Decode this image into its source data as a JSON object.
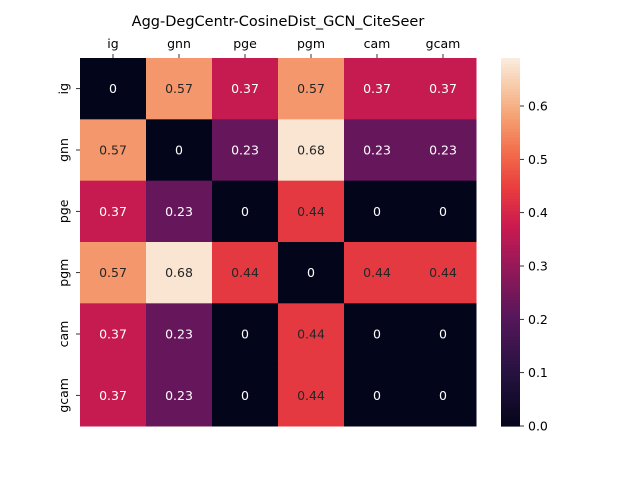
{
  "chart_data": {
    "type": "heatmap",
    "title": "Agg-DegCentr-CosineDist_GCN_CiteSeer",
    "x_labels": [
      "ig",
      "gnn",
      "pge",
      "pgm",
      "cam",
      "gcam"
    ],
    "y_labels": [
      "ig",
      "gnn",
      "pge",
      "pgm",
      "cam",
      "gcam"
    ],
    "values": [
      [
        0,
        0.57,
        0.37,
        0.57,
        0.37,
        0.37
      ],
      [
        0.57,
        0,
        0.23,
        0.68,
        0.23,
        0.23
      ],
      [
        0.37,
        0.23,
        0,
        0.44,
        0,
        0
      ],
      [
        0.57,
        0.68,
        0.44,
        0,
        0.44,
        0.44
      ],
      [
        0.37,
        0.23,
        0,
        0.44,
        0,
        0
      ],
      [
        0.37,
        0.23,
        0,
        0.44,
        0,
        0
      ]
    ],
    "colorbar": {
      "min": 0.0,
      "max": 0.69,
      "ticks": [
        0.0,
        0.1,
        0.2,
        0.3,
        0.4,
        0.5,
        0.6
      ],
      "tick_labels": [
        "0.0",
        "0.1",
        "0.2",
        "0.3",
        "0.4",
        "0.5",
        "0.6"
      ]
    },
    "colormap": "rocket",
    "annotations": true,
    "x_tick_position": "top"
  }
}
